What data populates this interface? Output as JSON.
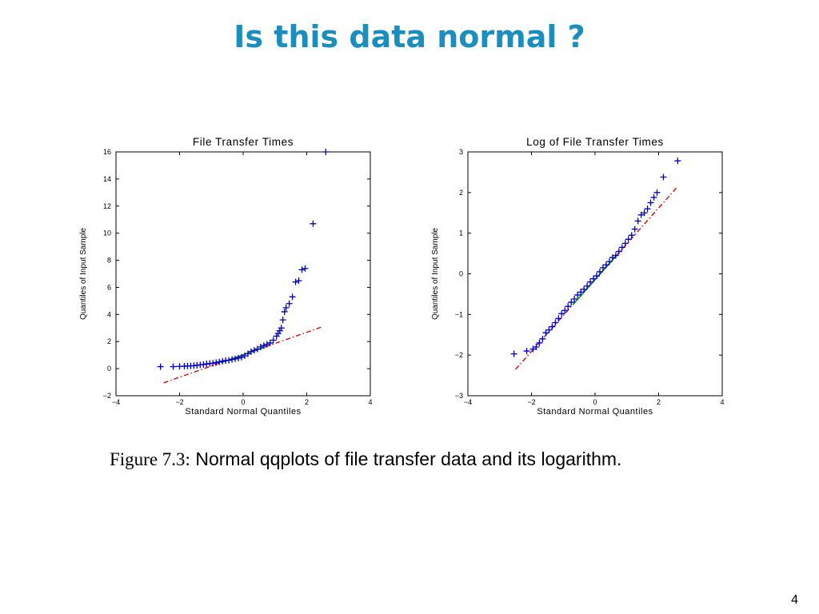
{
  "slide": {
    "title": "Is this data normal ?",
    "caption_figure": "Figure 7.3:",
    "caption_text": " Normal qqplots of file transfer data and its logarithm.",
    "page_number": "4"
  },
  "colors": {
    "title": "#1a8fbf",
    "points": "#0000cc",
    "reference_line": "#dd0000",
    "reference_segment_mid": "#009900"
  },
  "chart_data": [
    {
      "type": "scatter",
      "title": "File Transfer Times",
      "xlabel": "Standard Normal Quantiles",
      "ylabel": "Quantiles of Input Sample",
      "xlim": [
        -4,
        4
      ],
      "ylim": [
        -2,
        16
      ],
      "xticks": [
        -4,
        -2,
        0,
        2,
        4
      ],
      "xtick_labels": [
        "−4",
        "−2",
        "0",
        "2",
        "4"
      ],
      "yticks": [
        -2,
        0,
        2,
        4,
        6,
        8,
        10,
        12,
        14,
        16
      ],
      "ytick_labels": [
        "−2",
        "0",
        "2",
        "4",
        "6",
        "8",
        "10",
        "12",
        "14",
        "16"
      ],
      "marker": "+",
      "reference_line": {
        "style": "dash-dot",
        "x": [
          -2.5,
          2.5
        ],
        "y": [
          -1.05,
          3.1
        ]
      },
      "series": [
        {
          "x": [
            -2.6,
            -2.2,
            -2.0,
            -1.85,
            -1.75,
            -1.65,
            -1.55,
            -1.45,
            -1.35,
            -1.25,
            -1.15,
            -1.05,
            -0.95,
            -0.85,
            -0.75,
            -0.65,
            -0.55,
            -0.45,
            -0.35,
            -0.25,
            -0.15,
            -0.05,
            0.05,
            0.15,
            0.25,
            0.35,
            0.45,
            0.55,
            0.65,
            0.75,
            0.85,
            0.95,
            1.05,
            1.1,
            1.15,
            1.2,
            1.25,
            1.3,
            1.35,
            1.45,
            1.55,
            1.65,
            1.75,
            1.85,
            1.95,
            2.2,
            2.6
          ],
          "y": [
            0.15,
            0.15,
            0.17,
            0.18,
            0.2,
            0.2,
            0.22,
            0.25,
            0.28,
            0.3,
            0.35,
            0.38,
            0.4,
            0.45,
            0.5,
            0.55,
            0.6,
            0.62,
            0.68,
            0.72,
            0.78,
            0.85,
            0.95,
            1.1,
            1.25,
            1.35,
            1.45,
            1.6,
            1.7,
            1.8,
            1.9,
            2.1,
            2.4,
            2.6,
            2.8,
            3.0,
            3.6,
            4.2,
            4.5,
            4.8,
            5.3,
            6.4,
            6.5,
            7.3,
            7.4,
            10.7,
            16.0
          ]
        }
      ]
    },
    {
      "type": "scatter",
      "title": "Log of File Transfer Times",
      "xlabel": "Standard Normal Quantiles",
      "ylabel": "Quantiles of Input Sample",
      "xlim": [
        -4,
        4
      ],
      "ylim": [
        -3,
        3
      ],
      "xticks": [
        -4,
        -2,
        0,
        2,
        4
      ],
      "xtick_labels": [
        "−4",
        "−2",
        "0",
        "2",
        "4"
      ],
      "yticks": [
        -3,
        -2,
        -1,
        0,
        1,
        2,
        3
      ],
      "ytick_labels": [
        "−3",
        "−2",
        "−1",
        "0",
        "1",
        "2",
        "3"
      ],
      "marker": "+",
      "reference_line": {
        "style": "dash-dot",
        "x": [
          -2.5,
          2.6
        ],
        "y": [
          -2.35,
          2.15
        ]
      },
      "series": [
        {
          "x": [
            -2.55,
            -2.15,
            -1.95,
            -1.85,
            -1.75,
            -1.65,
            -1.55,
            -1.45,
            -1.35,
            -1.25,
            -1.15,
            -1.05,
            -0.95,
            -0.85,
            -0.75,
            -0.65,
            -0.55,
            -0.45,
            -0.35,
            -0.25,
            -0.15,
            -0.05,
            0.05,
            0.15,
            0.25,
            0.35,
            0.45,
            0.55,
            0.65,
            0.75,
            0.85,
            0.95,
            1.05,
            1.15,
            1.25,
            1.35,
            1.45,
            1.55,
            1.65,
            1.75,
            1.85,
            1.95,
            2.15,
            2.6
          ],
          "y": [
            -1.97,
            -1.9,
            -1.85,
            -1.8,
            -1.7,
            -1.6,
            -1.45,
            -1.38,
            -1.3,
            -1.2,
            -1.1,
            -0.98,
            -0.9,
            -0.8,
            -0.7,
            -0.62,
            -0.52,
            -0.45,
            -0.38,
            -0.3,
            -0.2,
            -0.12,
            -0.05,
            0.05,
            0.15,
            0.22,
            0.3,
            0.4,
            0.45,
            0.55,
            0.65,
            0.75,
            0.85,
            0.95,
            1.1,
            1.3,
            1.45,
            1.5,
            1.6,
            1.75,
            1.88,
            2.0,
            2.38,
            2.78
          ]
        }
      ]
    }
  ]
}
